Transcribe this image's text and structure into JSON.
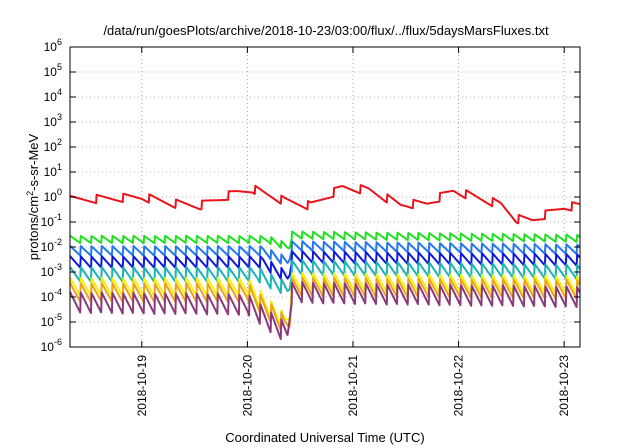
{
  "chart_data": {
    "type": "line",
    "title": "/data/run/goesPlots/archive/2018-10-23/03:00/flux/../flux/5daysMarsFluxes.txt",
    "xlabel": "Coordinated Universal Time (UTC)",
    "ylabel": {
      "base": "protons/cm",
      "sup": "2",
      "rest": "-s-sr-MeV"
    },
    "yscale": "log",
    "ylim": [
      1e-06,
      1000000.0
    ],
    "xlim": [
      -0.68,
      4.15
    ],
    "grid": true,
    "y_ticks": [
      {
        "exp": -6,
        "label": "-6"
      },
      {
        "exp": -5,
        "label": "-5"
      },
      {
        "exp": -4,
        "label": "-4"
      },
      {
        "exp": -3,
        "label": "-3"
      },
      {
        "exp": -2,
        "label": "-2"
      },
      {
        "exp": -1,
        "label": "-1"
      },
      {
        "exp": 0,
        "label": "0"
      },
      {
        "exp": 1,
        "label": "1"
      },
      {
        "exp": 2,
        "label": "2"
      },
      {
        "exp": 3,
        "label": "3"
      },
      {
        "exp": 4,
        "label": "4"
      },
      {
        "exp": 5,
        "label": "5"
      },
      {
        "exp": 6,
        "label": "6"
      }
    ],
    "y_tick_base": "10",
    "x_ticks": [
      {
        "x": 0,
        "label": "2018-10-19"
      },
      {
        "x": 1,
        "label": "2018-10-20"
      },
      {
        "x": 2,
        "label": "2018-10-21"
      },
      {
        "x": 3,
        "label": "2018-10-22"
      },
      {
        "x": 4,
        "label": "2018-10-23"
      }
    ],
    "series": [
      {
        "color": "#e8141c",
        "period": 0.25,
        "start": -0.68,
        "shape": [
          [
            -0.68,
            0.75
          ],
          [
            0,
            1.0
          ],
          [
            0.3,
            0.55
          ],
          [
            0.55,
            0.45
          ],
          [
            0.9,
            1.5
          ],
          [
            1.05,
            2.1
          ],
          [
            1.35,
            0.7
          ],
          [
            1.6,
            0.45
          ],
          [
            1.9,
            2.4
          ],
          [
            2.15,
            1.9
          ],
          [
            2.45,
            0.5
          ],
          [
            2.7,
            0.55
          ],
          [
            2.95,
            1.8
          ],
          [
            3.4,
            0.5
          ],
          [
            3.55,
            0.13
          ],
          [
            3.7,
            0.12
          ],
          [
            4.0,
            0.4
          ],
          [
            4.15,
            0.45
          ]
        ],
        "amp": 2.2
      },
      {
        "color": "#1fe01f",
        "period": 0.1,
        "start": -0.68,
        "shape": [
          [
            -0.68,
            0.02
          ],
          [
            1.2,
            0.02
          ],
          [
            1.38,
            0.01
          ],
          [
            1.4,
            0.011
          ],
          [
            1.42,
            0.03
          ],
          [
            4.15,
            0.022
          ]
        ],
        "amp": 2.0
      },
      {
        "color": "#2478ee",
        "period": 0.1,
        "start": -0.68,
        "shape": [
          [
            -0.68,
            0.007
          ],
          [
            1.15,
            0.007
          ],
          [
            1.38,
            0.0025
          ],
          [
            1.4,
            0.004
          ],
          [
            1.42,
            0.011
          ],
          [
            4.15,
            0.008
          ]
        ],
        "amp": 2.5
      },
      {
        "color": "#0d19d9",
        "period": 0.1,
        "start": -0.68,
        "shape": [
          [
            -0.68,
            0.0025
          ],
          [
            1.15,
            0.0025
          ],
          [
            1.38,
            0.0006
          ],
          [
            1.4,
            0.001
          ],
          [
            1.42,
            0.004
          ],
          [
            4.15,
            0.003
          ]
        ],
        "amp": 3.0
      },
      {
        "color": "#1bb3b3",
        "period": 0.1,
        "start": -0.68,
        "shape": [
          [
            -0.68,
            0.0008
          ],
          [
            1.1,
            0.0008
          ],
          [
            1.38,
            0.0002
          ],
          [
            1.4,
            0.0003
          ],
          [
            1.42,
            0.0015
          ],
          [
            4.15,
            0.001
          ]
        ],
        "amp": 4.0
      },
      {
        "color": "#f2f20c",
        "period": 0.1,
        "start": -0.68,
        "shape": [
          [
            -0.68,
            0.00025
          ],
          [
            1.0,
            0.00025
          ],
          [
            1.35,
            1e-05
          ],
          [
            1.4,
            2e-05
          ],
          [
            1.42,
            0.0004
          ],
          [
            4.15,
            0.0003
          ]
        ],
        "amp": 5.5
      },
      {
        "color": "#eea21b",
        "period": 0.1,
        "start": -0.68,
        "shape": [
          [
            -0.68,
            0.00015
          ],
          [
            1.0,
            0.00015
          ],
          [
            1.35,
            8e-06
          ],
          [
            1.4,
            1e-05
          ],
          [
            1.42,
            0.00025
          ],
          [
            4.15,
            0.0002
          ]
        ],
        "amp": 6.0
      },
      {
        "color": "#8a3a7a",
        "period": 0.1,
        "start": -0.68,
        "shape": [
          [
            -0.68,
            6e-05
          ],
          [
            1.0,
            5e-05
          ],
          [
            1.32,
            5e-06
          ],
          [
            1.38,
            3.5e-06
          ],
          [
            1.42,
            0.00015
          ],
          [
            4.15,
            0.0001
          ]
        ],
        "amp": 7.0
      }
    ]
  }
}
